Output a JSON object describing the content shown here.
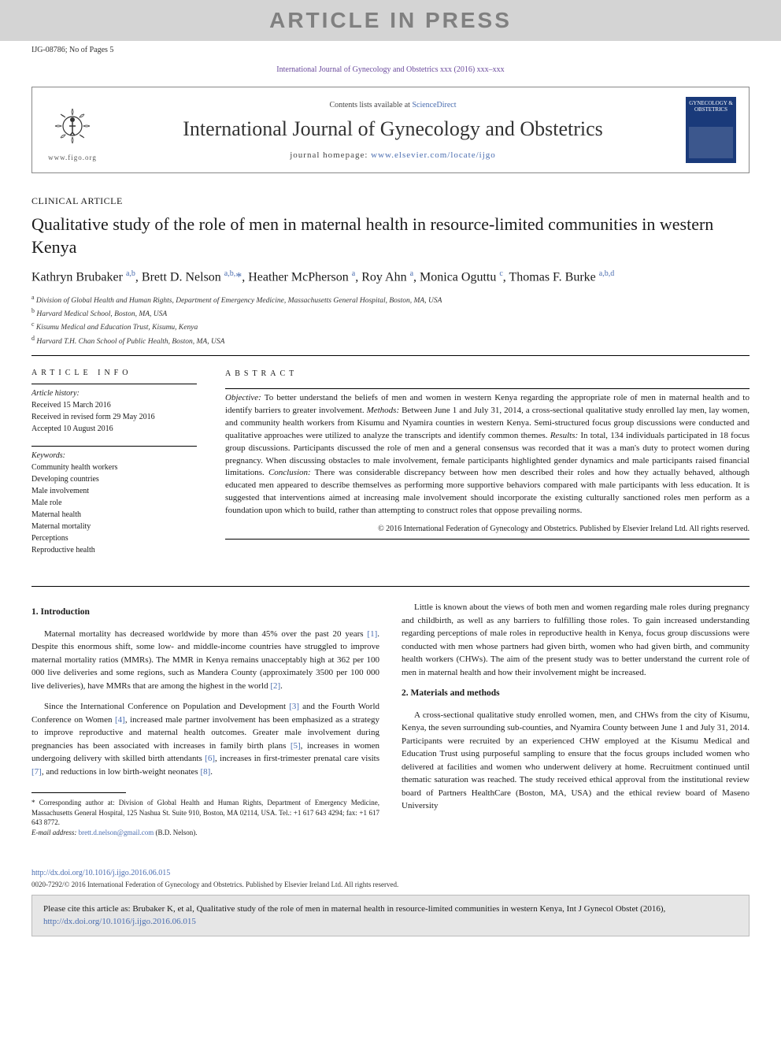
{
  "banner_text": "ARTICLE IN PRESS",
  "docid": "IJG-08786; No of Pages 5",
  "citation_top": "International Journal of Gynecology and Obstetrics xxx (2016) xxx–xxx",
  "journal_box": {
    "contents_line_pre": "Contents lists available at ",
    "sciencedirect": "ScienceDirect",
    "journal_name": "International Journal of Gynecology and Obstetrics",
    "homepage_pre": "journal homepage: ",
    "homepage_url": "www.elsevier.com/locate/ijgo",
    "figo_url": "www.figo.org",
    "cover_top": "GYNECOLOGY & OBSTETRICS"
  },
  "article_type": "CLINICAL ARTICLE",
  "title": "Qualitative study of the role of men in maternal health in resource-limited communities in western Kenya",
  "authors_html": [
    {
      "name": "Kathryn Brubaker",
      "sup": "a,b"
    },
    {
      "name": "Brett D. Nelson",
      "sup": "a,b,*"
    },
    {
      "name": "Heather McPherson",
      "sup": "a"
    },
    {
      "name": "Roy Ahn",
      "sup": "a"
    },
    {
      "name": "Monica Oguttu",
      "sup": "c"
    },
    {
      "name": "Thomas F. Burke",
      "sup": "a,b,d"
    }
  ],
  "affiliations": [
    {
      "sup": "a",
      "text": "Division of Global Health and Human Rights, Department of Emergency Medicine, Massachusetts General Hospital, Boston, MA, USA"
    },
    {
      "sup": "b",
      "text": "Harvard Medical School, Boston, MA, USA"
    },
    {
      "sup": "c",
      "text": "Kisumu Medical and Education Trust, Kisumu, Kenya"
    },
    {
      "sup": "d",
      "text": "Harvard T.H. Chan School of Public Health, Boston, MA, USA"
    }
  ],
  "article_info": {
    "header": "ARTICLE INFO",
    "history_label": "Article history:",
    "history": [
      "Received 15 March 2016",
      "Received in revised form 29 May 2016",
      "Accepted 10 August 2016"
    ],
    "keywords_label": "Keywords:",
    "keywords": [
      "Community health workers",
      "Developing countries",
      "Male involvement",
      "Male role",
      "Maternal health",
      "Maternal mortality",
      "Perceptions",
      "Reproductive health"
    ]
  },
  "abstract": {
    "header": "ABSTRACT",
    "objective_label": "Objective:",
    "objective": " To better understand the beliefs of men and women in western Kenya regarding the appropriate role of men in maternal health and to identify barriers to greater involvement. ",
    "methods_label": "Methods:",
    "methods": " Between June 1 and July 31, 2014, a cross-sectional qualitative study enrolled lay men, lay women, and community health workers from Kisumu and Nyamira counties in western Kenya. Semi-structured focus group discussions were conducted and qualitative approaches were utilized to analyze the transcripts and identify common themes. ",
    "results_label": "Results:",
    "results": " In total, 134 individuals participated in 18 focus group discussions. Participants discussed the role of men and a general consensus was recorded that it was a man's duty to protect women during pregnancy. When discussing obstacles to male involvement, female participants highlighted gender dynamics and male participants raised financial limitations. ",
    "conclusion_label": "Conclusion:",
    "conclusion": " There was considerable discrepancy between how men described their roles and how they actually behaved, although educated men appeared to describe themselves as performing more supportive behaviors compared with male participants with less education. It is suggested that interventions aimed at increasing male involvement should incorporate the existing culturally sanctioned roles men perform as a foundation upon which to build, rather than attempting to construct roles that oppose prevailing norms.",
    "copyright": "© 2016 International Federation of Gynecology and Obstetrics. Published by Elsevier Ireland Ltd. All rights reserved."
  },
  "body": {
    "sec1_head": "1. Introduction",
    "p1a": "Maternal mortality has decreased worldwide by more than 45% over the past 20 years ",
    "p1b": ". Despite this enormous shift, some low- and middle-income countries have struggled to improve maternal mortality ratios (MMRs). The MMR in Kenya remains unacceptably high at 362 per 100 000 live deliveries and some regions, such as Mandera County (approximately 3500 per 100 000 live deliveries), have MMRs that are among the highest in the world ",
    "p2a": "Since the International Conference on Population and Development ",
    "p2b": " and the Fourth World Conference on Women ",
    "p2c": ", increased male partner involvement has been emphasized as a strategy to improve reproductive and maternal health outcomes. Greater male involvement during pregnancies has been associated with increases in family birth plans ",
    "p2d": ", increases in women undergoing delivery with skilled birth attendants ",
    "p2e": ", increases in first-trimester prenatal care visits ",
    "p2f": ", and reductions in low birth-weight neonates ",
    "p3": "Little is known about the views of both men and women regarding male roles during pregnancy and childbirth, as well as any barriers to fulfilling those roles. To gain increased understanding regarding perceptions of male roles in reproductive health in Kenya, focus group discussions were conducted with men whose partners had given birth, women who had given birth, and community health workers (CHWs). The aim of the present study was to better understand the current role of men in maternal health and how their involvement might be increased.",
    "sec2_head": "2. Materials and methods",
    "p4": "A cross-sectional qualitative study enrolled women, men, and CHWs from the city of Kisumu, Kenya, the seven surrounding sub-counties, and Nyamira County between June 1 and July 31, 2014. Participants were recruited by an experienced CHW employed at the Kisumu Medical and Education Trust using purposeful sampling to ensure that the focus groups included women who delivered at facilities and women who underwent delivery at home. Recruitment continued until thematic saturation was reached. The study received ethical approval from the institutional review board of Partners HealthCare (Boston, MA, USA) and the ethical review board of Maseno University",
    "refs": {
      "r1": "[1]",
      "r2": "[2]",
      "r3": "[3]",
      "r4": "[4]",
      "r5": "[5]",
      "r6": "[6]",
      "r7": "[7]",
      "r8": "[8]"
    }
  },
  "footnote": {
    "corr_label": "* Corresponding author at: ",
    "corr_text": "Division of Global Health and Human Rights, Department of Emergency Medicine, Massachusetts General Hospital, 125 Nashua St. Suite 910, Boston, MA 02114, USA. Tel.: +1 617 643 4294; fax: +1 617 643 8772.",
    "email_label": "E-mail address: ",
    "email": "brett.d.nelson@gmail.com",
    "email_suffix": " (B.D. Nelson)."
  },
  "doi": "http://dx.doi.org/10.1016/j.ijgo.2016.06.015",
  "rights": "0020-7292/© 2016 International Federation of Gynecology and Obstetrics. Published by Elsevier Ireland Ltd. All rights reserved.",
  "cite_box": {
    "pre": "Please cite this article as: Brubaker K, et al, Qualitative study of the role of men in maternal health in resource-limited communities in western Kenya, Int J Gynecol Obstet (2016), ",
    "link": "http://dx.doi.org/10.1016/j.ijgo.2016.06.015"
  },
  "colors": {
    "banner_bg": "#d4d4d4",
    "banner_fg": "#808080",
    "link": "#4a6db0",
    "purple": "#6a4a9c",
    "cover": "#1a3a7a",
    "citebox_bg": "#e6e6e6"
  }
}
